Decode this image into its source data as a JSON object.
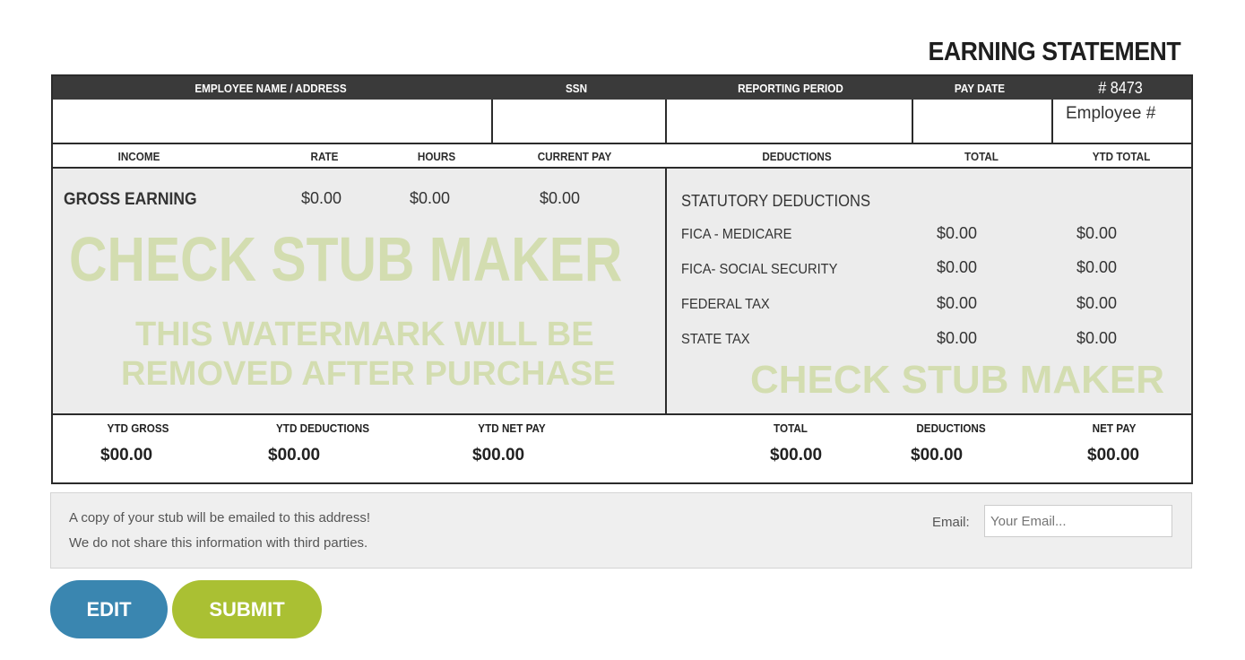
{
  "title": "EARNING STATEMENT",
  "header": {
    "employee_name_address": "EMPLOYEE NAME / ADDRESS",
    "ssn": "SSN",
    "reporting_period": "REPORTING PERIOD",
    "pay_date": "PAY DATE",
    "number": "# 8473",
    "employee_number": "Employee #"
  },
  "columns": {
    "income": "INCOME",
    "rate": "RATE",
    "hours": "HOURS",
    "current_pay": "CURRENT PAY",
    "deductions": "DEDUCTIONS",
    "total": "TOTAL",
    "ytd_total": "YTD TOTAL"
  },
  "income": {
    "label": "GROSS EARNING",
    "rate": "$0.00",
    "hours": "$0.00",
    "current_pay": "$0.00"
  },
  "deductions": {
    "heading": "STATUTORY DEDUCTIONS",
    "items": [
      {
        "label": "FICA - MEDICARE",
        "total": "$0.00",
        "ytd": "$0.00"
      },
      {
        "label": "FICA- SOCIAL SECURITY",
        "total": "$0.00",
        "ytd": "$0.00"
      },
      {
        "label": "FEDERAL TAX",
        "total": "$0.00",
        "ytd": "$0.00"
      },
      {
        "label": "STATE TAX",
        "total": "$0.00",
        "ytd": "$0.00"
      }
    ]
  },
  "watermarks": {
    "main": "CHECK STUB MAKER",
    "line1": "THIS WATERMARK WILL BE",
    "line2": "REMOVED AFTER PURCHASE",
    "secondary": "CHECK STUB MAKER"
  },
  "footer": [
    {
      "label": "YTD GROSS",
      "value": "$00.00"
    },
    {
      "label": "YTD DEDUCTIONS",
      "value": "$00.00"
    },
    {
      "label": "YTD NET PAY",
      "value": "$00.00"
    },
    {
      "label": "TOTAL",
      "value": "$00.00"
    },
    {
      "label": "DEDUCTIONS",
      "value": "$00.00"
    },
    {
      "label": "NET PAY",
      "value": "$00.00"
    }
  ],
  "email_note": {
    "line1": "A copy of your stub will be emailed to this address!",
    "line2": "We do not share this information with third parties.",
    "label": "Email:",
    "placeholder": "Your Email...",
    "value": ""
  },
  "buttons": {
    "edit": "EDIT",
    "submit": "SUBMIT"
  },
  "colors": {
    "edit": "#3a86b0",
    "submit": "#aac033",
    "header": "#3a3a3a",
    "watermark": "#d3ddb0"
  }
}
